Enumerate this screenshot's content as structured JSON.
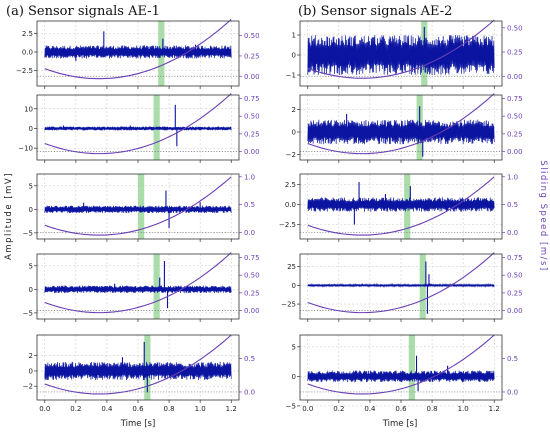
{
  "figure": {
    "column_titles": [
      "(a) Sensor signals AE-1",
      "(b) Sensor signals AE-2"
    ],
    "left_axis_label": "Amplitude [mV]",
    "right_axis_label": "Sliding Speed [m/s]",
    "x_axis_label": "Time [s]"
  },
  "colors": {
    "signal": "#0a14a0",
    "speed": "#6a3fb5",
    "highlight": "#8fd18f",
    "grid": "#c8c8c8",
    "dotted": "#777777"
  },
  "chart_data": [
    {
      "type": "line",
      "panel": "AE-1 row 1",
      "x_range": [
        -0.05,
        1.25
      ],
      "x_ticks": [
        "0.0",
        "0.2",
        "0.4",
        "0.6",
        "0.8",
        "1.0",
        "1.2"
      ],
      "left_ylim": [
        -4.6,
        4.2
      ],
      "left_ticks": [
        -2.5,
        0.0,
        2.5
      ],
      "left_tick_labels": [
        "−2.5",
        "0.0",
        "2.5"
      ],
      "right_ylim": [
        -0.12,
        0.68
      ],
      "right_ticks": [
        0,
        0.25,
        0.5
      ],
      "right_tick_labels": [
        "0.00",
        "0.25",
        "0.50"
      ],
      "signal_base_amplitude": 0.9,
      "spikes": [
        [
          0.38,
          2.8
        ],
        [
          0.76,
          1.8
        ],
        [
          0.2,
          -1.2
        ],
        [
          0.97,
          1.0
        ]
      ],
      "highlight_span": [
        0.73,
        0.77
      ],
      "speed_series": {
        "name": "Sliding Speed",
        "t_min": 0.35,
        "v_min": -0.03,
        "t_end": 1.2,
        "v_end": 0.7
      }
    },
    {
      "type": "line",
      "panel": "AE-1 row 2",
      "x_range": [
        -0.05,
        1.25
      ],
      "x_ticks": [
        "0.0",
        "0.2",
        "0.4",
        "0.6",
        "0.8",
        "1.0",
        "1.2"
      ],
      "left_ylim": [
        -16,
        17
      ],
      "left_ticks": [
        -10,
        0,
        10
      ],
      "left_tick_labels": [
        "−10",
        "0",
        "10"
      ],
      "right_ylim": [
        -0.12,
        0.8
      ],
      "right_ticks": [
        0,
        0.25,
        0.5,
        0.75
      ],
      "right_tick_labels": [
        "0.00",
        "0.25",
        "0.50",
        "0.75"
      ],
      "signal_base_amplitude": 1.0,
      "spikes": [
        [
          0.84,
          12
        ],
        [
          0.85,
          -9
        ],
        [
          0.12,
          1.5
        ],
        [
          0.55,
          1.5
        ]
      ],
      "highlight_span": [
        0.7,
        0.74
      ],
      "speed_series": {
        "name": "Sliding Speed",
        "t_min": 0.35,
        "v_min": -0.03,
        "t_end": 1.2,
        "v_end": 0.82
      }
    },
    {
      "type": "line",
      "panel": "AE-1 row 3",
      "x_range": [
        -0.05,
        1.25
      ],
      "x_ticks": [
        "0.0",
        "0.2",
        "0.4",
        "0.6",
        "0.8",
        "1.0",
        "1.2"
      ],
      "left_ylim": [
        -6.3,
        7.5
      ],
      "left_ticks": [
        -5,
        0,
        5
      ],
      "left_tick_labels": [
        "−5",
        "0",
        "5"
      ],
      "right_ylim": [
        -0.12,
        1.05
      ],
      "right_ticks": [
        0,
        0.5,
        1.0
      ],
      "right_tick_labels": [
        "0.0",
        "0.5",
        "1.0"
      ],
      "signal_base_amplitude": 0.8,
      "spikes": [
        [
          0.78,
          4
        ],
        [
          0.8,
          -4
        ],
        [
          0.25,
          1.4
        ],
        [
          1.0,
          1.5
        ]
      ],
      "highlight_span": [
        0.6,
        0.64
      ],
      "speed_series": {
        "name": "Sliding Speed",
        "t_min": 0.35,
        "v_min": -0.05,
        "t_end": 1.2,
        "v_end": 1.0
      }
    },
    {
      "type": "line",
      "panel": "AE-1 row 4",
      "x_range": [
        -0.05,
        1.25
      ],
      "x_ticks": [
        "0.0",
        "0.2",
        "0.4",
        "0.6",
        "0.8",
        "1.0",
        "1.2"
      ],
      "left_ylim": [
        -6.3,
        7.5
      ],
      "left_ticks": [
        -5,
        0,
        5
      ],
      "left_tick_labels": [
        "−5",
        "0",
        "5"
      ],
      "right_ylim": [
        -0.12,
        0.8
      ],
      "right_ticks": [
        0,
        0.25,
        0.5,
        0.75
      ],
      "right_tick_labels": [
        "0.00",
        "0.25",
        "0.50",
        "0.75"
      ],
      "signal_base_amplitude": 0.8,
      "spikes": [
        [
          0.77,
          6
        ],
        [
          0.79,
          -4
        ],
        [
          0.74,
          2.5
        ],
        [
          0.45,
          1.2
        ]
      ],
      "highlight_span": [
        0.7,
        0.74
      ],
      "speed_series": {
        "name": "Sliding Speed",
        "t_min": 0.35,
        "v_min": -0.03,
        "t_end": 1.2,
        "v_end": 0.82
      }
    },
    {
      "type": "line",
      "panel": "AE-1 row 5",
      "x_range": [
        -0.05,
        1.25
      ],
      "x_ticks": [
        "0.0",
        "0.2",
        "0.4",
        "0.6",
        "0.8",
        "1.0",
        "1.2"
      ],
      "left_ylim": [
        -3.8,
        4.7
      ],
      "left_ticks": [
        -2,
        0,
        2
      ],
      "left_tick_labels": [
        "−2",
        "0",
        "2"
      ],
      "right_ylim": [
        -0.12,
        0.85
      ],
      "right_ticks": [
        0,
        0.5
      ],
      "right_tick_labels": [
        "0.0",
        "0.5"
      ],
      "signal_base_amplitude": 1.2,
      "spikes": [
        [
          0.64,
          3.8
        ],
        [
          0.66,
          -2.8
        ],
        [
          0.5,
          1.8
        ]
      ],
      "highlight_span": [
        0.64,
        0.68
      ],
      "speed_series": {
        "name": "Sliding Speed",
        "t_min": 0.35,
        "v_min": -0.03,
        "t_end": 1.2,
        "v_end": 0.85
      }
    },
    {
      "type": "line",
      "panel": "AE-2 row 1",
      "x_range": [
        -0.05,
        1.25
      ],
      "x_ticks": [
        "0.0",
        "0.2",
        "0.4",
        "0.6",
        "0.8",
        "1.0",
        "1.2"
      ],
      "left_ylim": [
        -1.55,
        1.7
      ],
      "left_ticks": [
        -1,
        0,
        1
      ],
      "left_tick_labels": [
        "−1",
        "0",
        "1"
      ],
      "right_ylim": [
        -0.1,
        0.57
      ],
      "right_ticks": [
        0,
        0.25,
        0.5
      ],
      "right_tick_labels": [
        "0.00",
        "0.25",
        "0.50"
      ],
      "signal_base_amplitude": 1.0,
      "spikes": [
        [
          0.75,
          1.4
        ]
      ],
      "highlight_span": [
        0.73,
        0.77
      ],
      "speed_series": {
        "name": "Sliding Speed",
        "t_min": 0.35,
        "v_min": -0.02,
        "t_end": 1.2,
        "v_end": 0.58
      }
    },
    {
      "type": "line",
      "panel": "AE-2 row 2",
      "x_range": [
        -0.05,
        1.25
      ],
      "x_ticks": [
        "0.0",
        "0.2",
        "0.4",
        "0.6",
        "0.8",
        "1.0",
        "1.2"
      ],
      "left_ylim": [
        -2.5,
        3.3
      ],
      "left_ticks": [
        -2,
        0,
        2
      ],
      "left_tick_labels": [
        "−2",
        "0",
        "2"
      ],
      "right_ylim": [
        -0.12,
        0.8
      ],
      "right_ticks": [
        0,
        0.25,
        0.5,
        0.75
      ],
      "right_tick_labels": [
        "0.00",
        "0.25",
        "0.50",
        "0.75"
      ],
      "signal_base_amplitude": 1.1,
      "spikes": [
        [
          0.72,
          2.3
        ],
        [
          0.74,
          -2.2
        ],
        [
          0.25,
          1.6
        ]
      ],
      "highlight_span": [
        0.7,
        0.74
      ],
      "speed_series": {
        "name": "Sliding Speed",
        "t_min": 0.35,
        "v_min": -0.03,
        "t_end": 1.2,
        "v_end": 0.82
      }
    },
    {
      "type": "line",
      "panel": "AE-2 row 3",
      "x_range": [
        -0.05,
        1.25
      ],
      "x_ticks": [
        "0.0",
        "0.2",
        "0.4",
        "0.6",
        "0.8",
        "1.0",
        "1.2"
      ],
      "left_ylim": [
        -4.3,
        3.8
      ],
      "left_ticks": [
        -2.5,
        0.0,
        2.5
      ],
      "left_tick_labels": [
        "−2.5",
        "0.0",
        "2.5"
      ],
      "right_ylim": [
        -0.12,
        1.05
      ],
      "right_ticks": [
        0,
        0.5,
        1.0
      ],
      "right_tick_labels": [
        "0.0",
        "0.5",
        "1.0"
      ],
      "signal_base_amplitude": 0.9,
      "spikes": [
        [
          0.33,
          2.8
        ],
        [
          0.3,
          -2.5
        ],
        [
          0.66,
          2.3
        ],
        [
          0.5,
          1.3
        ]
      ],
      "highlight_span": [
        0.62,
        0.66
      ],
      "speed_series": {
        "name": "Sliding Speed",
        "t_min": 0.35,
        "v_min": -0.05,
        "t_end": 1.2,
        "v_end": 1.0
      }
    },
    {
      "type": "line",
      "panel": "AE-2 row 4",
      "x_range": [
        -0.05,
        1.25
      ],
      "x_ticks": [
        "0.0",
        "0.2",
        "0.4",
        "0.6",
        "0.8",
        "1.0",
        "1.2"
      ],
      "left_ylim": [
        -45,
        42
      ],
      "left_ticks": [
        -25,
        0,
        25
      ],
      "left_tick_labels": [
        "−25",
        "0",
        "25"
      ],
      "right_ylim": [
        -0.12,
        0.8
      ],
      "right_ticks": [
        0,
        0.25,
        0.5,
        0.75
      ],
      "right_tick_labels": [
        "0.00",
        "0.25",
        "0.50",
        "0.75"
      ],
      "signal_base_amplitude": 1.5,
      "spikes": [
        [
          0.76,
          32
        ],
        [
          0.77,
          -38
        ],
        [
          0.78,
          15
        ]
      ],
      "highlight_span": [
        0.72,
        0.76
      ],
      "speed_series": {
        "name": "Sliding Speed",
        "t_min": 0.35,
        "v_min": -0.03,
        "t_end": 1.2,
        "v_end": 0.82
      }
    },
    {
      "type": "line",
      "panel": "AE-2 row 5",
      "x_range": [
        -0.05,
        1.25
      ],
      "x_ticks": [
        "0.0",
        "0.2",
        "0.4",
        "0.6",
        "0.8",
        "1.0",
        "1.2"
      ],
      "left_ylim": [
        -4,
        7
      ],
      "left_ticks": [
        -5,
        0,
        5
      ],
      "left_tick_labels": [
        "−5",
        "0",
        "5"
      ],
      "right_ylim": [
        -0.12,
        0.85
      ],
      "right_ticks": [
        0,
        0.5
      ],
      "right_tick_labels": [
        "0.0",
        "0.5"
      ],
      "signal_base_amplitude": 1.0,
      "spikes": [
        [
          0.7,
          3.5
        ],
        [
          0.71,
          -2.5
        ],
        [
          0.9,
          1.8
        ]
      ],
      "highlight_span": [
        0.65,
        0.69
      ],
      "speed_series": {
        "name": "Sliding Speed",
        "t_min": 0.35,
        "v_min": -0.03,
        "t_end": 1.2,
        "v_end": 0.85
      }
    }
  ]
}
